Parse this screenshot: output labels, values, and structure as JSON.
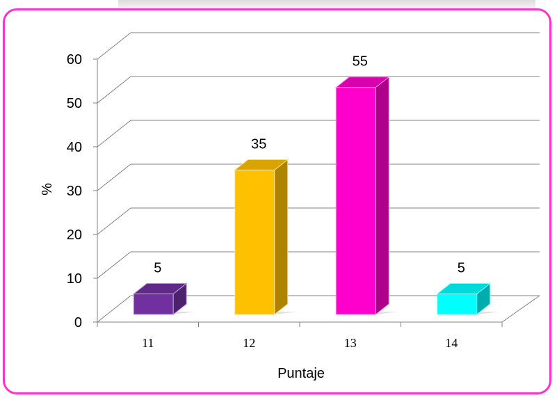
{
  "chart_data": {
    "type": "bar",
    "categories": [
      "11",
      "12",
      "13",
      "14"
    ],
    "values": [
      5,
      35,
      55,
      5
    ],
    "data_labels": [
      "5",
      "35",
      "55",
      "5"
    ],
    "title": "",
    "xlabel": "Puntaje",
    "ylabel": "%",
    "ylim": [
      0,
      60
    ],
    "yticks": [
      "0",
      "10",
      "20",
      "30",
      "40",
      "50",
      "60"
    ],
    "grid": true,
    "style": "3d-column",
    "colors": [
      "#7030a0",
      "#ffc000",
      "#ff00cc",
      "#00ffff"
    ],
    "frame_color": "#ff33cc"
  }
}
